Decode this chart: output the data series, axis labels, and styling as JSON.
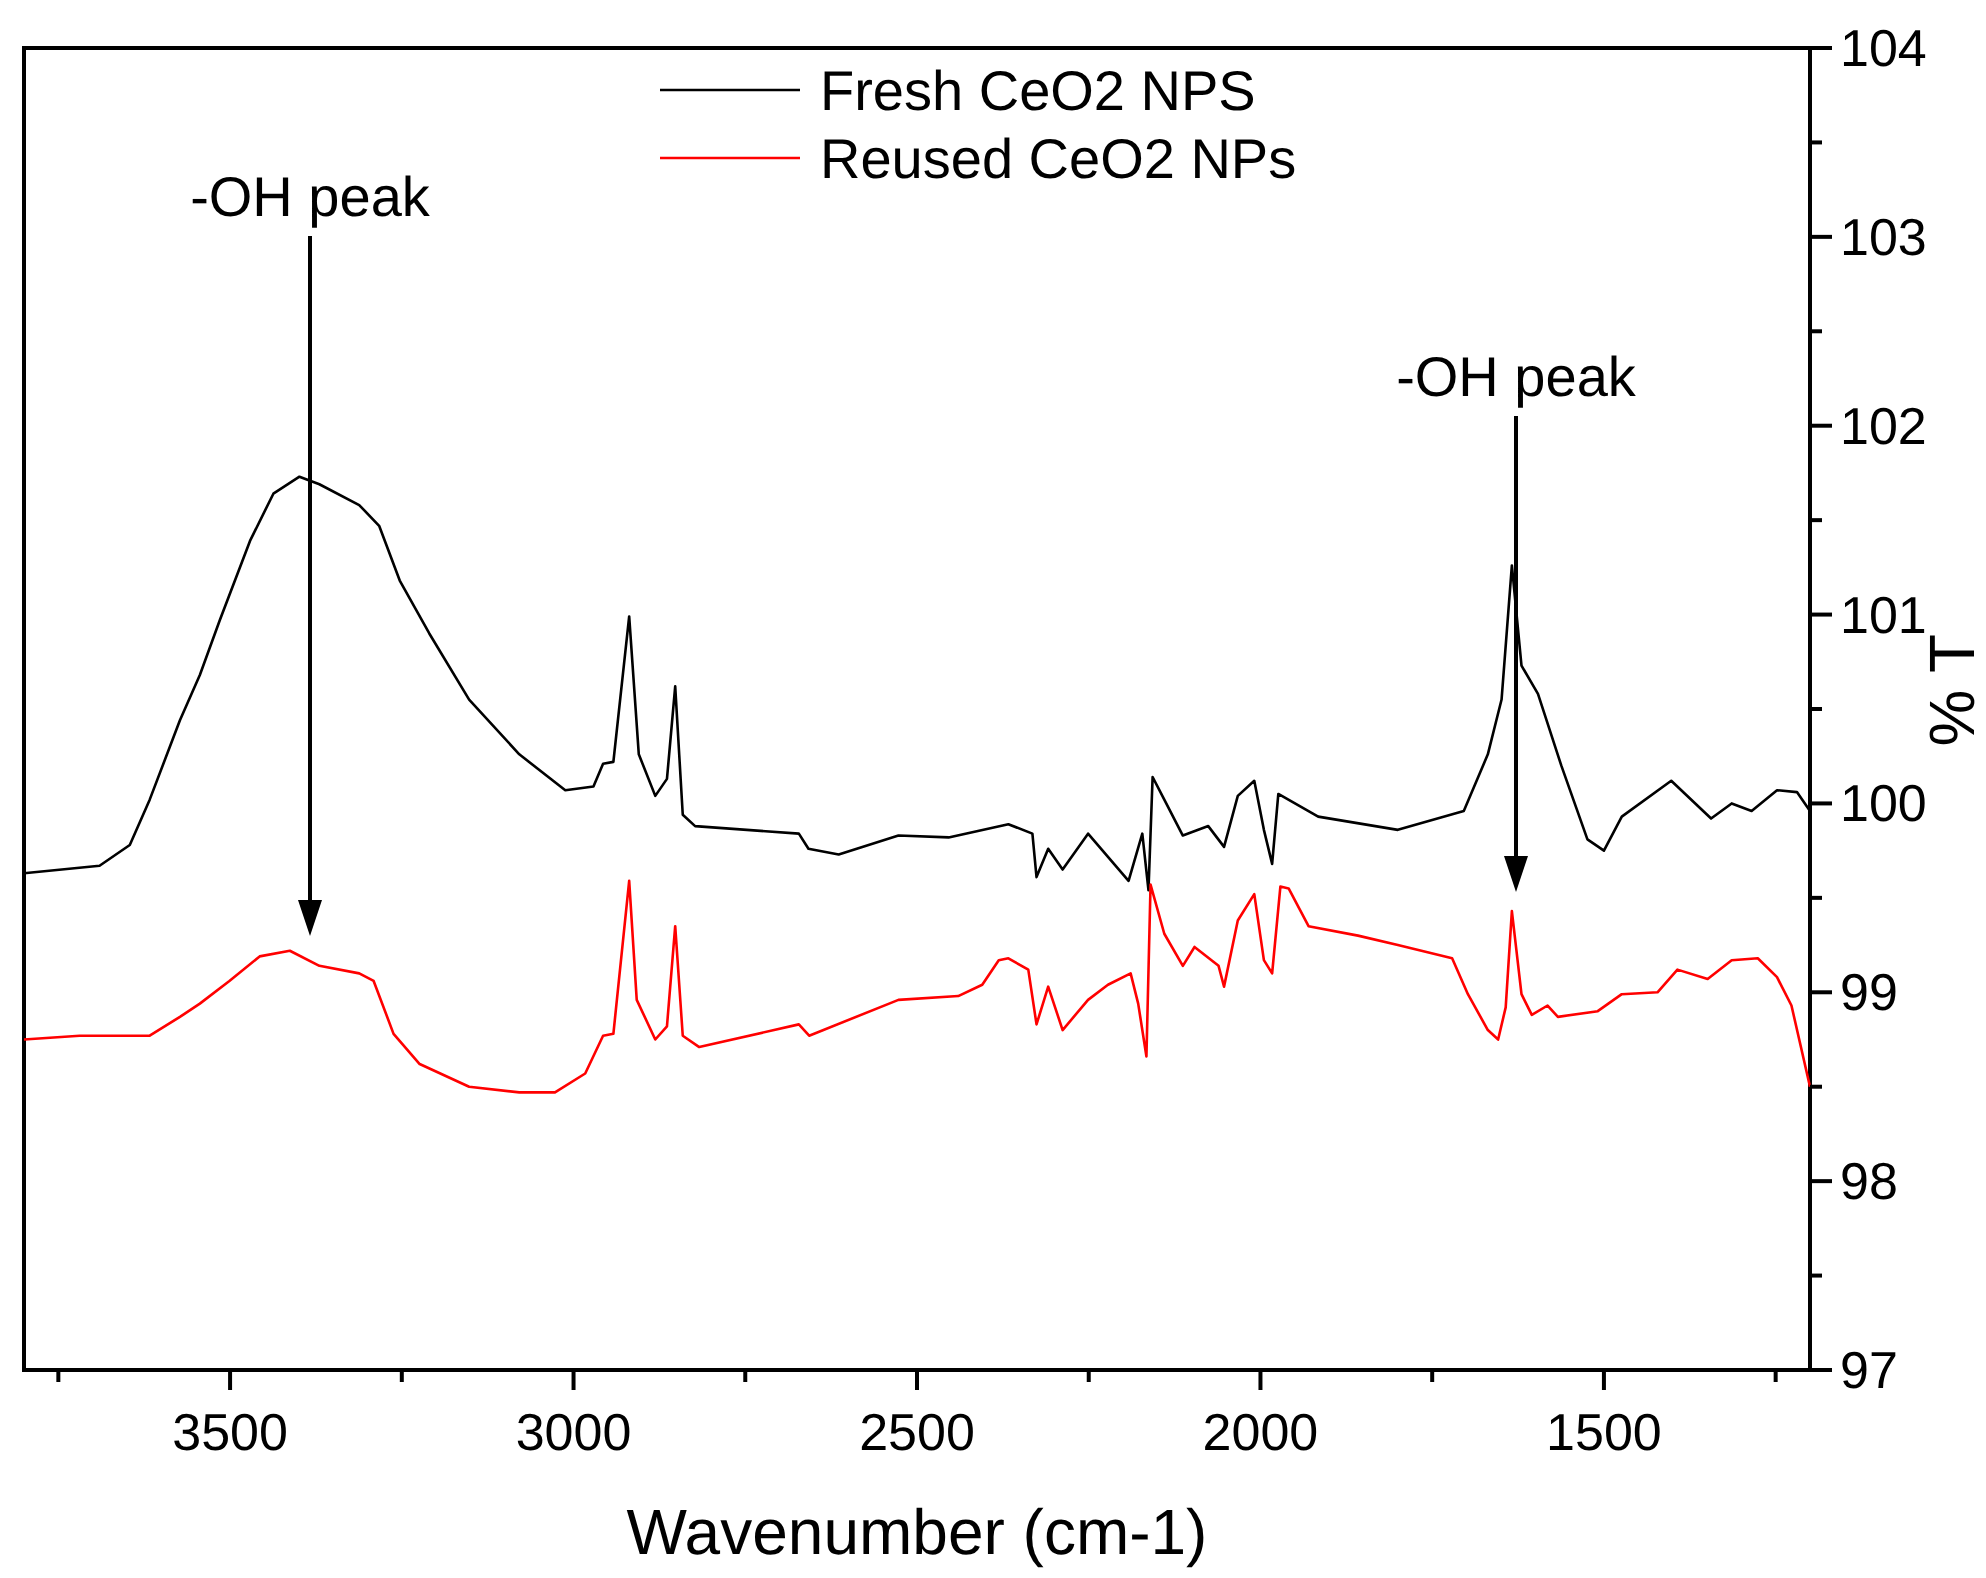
{
  "chart_data": {
    "type": "line",
    "xlabel": "Wavenumber (cm-1)",
    "ylabel": "% T",
    "legend": "top",
    "tick_labels": "xy",
    "xlim": [
      3800,
      1200
    ],
    "xticks": [
      {
        "value": 3750,
        "label": null
      },
      3500,
      {
        "value": 3250,
        "label": null
      },
      3000,
      {
        "value": 2750,
        "label": null
      },
      2500,
      {
        "value": 2250,
        "label": null
      },
      2000,
      {
        "value": 1750,
        "label": null
      },
      1500,
      {
        "value": 1250,
        "label": null
      }
    ],
    "ylim": [
      97,
      104
    ],
    "yticks": [
      97,
      {
        "value": 97.5,
        "label": null
      },
      98,
      {
        "value": 98.5,
        "label": null
      },
      99,
      {
        "value": 99.5,
        "label": null
      },
      100,
      {
        "value": 100.5,
        "label": null
      },
      101,
      {
        "value": 101.5,
        "label": null
      },
      102,
      {
        "value": 102.5,
        "label": null
      },
      103,
      {
        "value": 103.5,
        "label": null
      },
      104
    ],
    "annotations": [
      "-OH peak",
      "-OH peak"
    ],
    "series": [
      {
        "name": "Fresh CeO2 NPS",
        "color": "#000000",
        "x": [
          3800,
          3690,
          3646,
          3617,
          3573,
          3544,
          3515,
          3471,
          3437,
          3399,
          3370,
          3312,
          3283,
          3253,
          3210,
          3152,
          3079,
          3012,
          2971,
          2957,
          2942,
          2919,
          2905,
          2881,
          2864,
          2852,
          2841,
          2823,
          2672,
          2658,
          2614,
          2527,
          2454,
          2367,
          2332,
          2326,
          2309,
          2288,
          2251,
          2192,
          2172,
          2163,
          2157,
          2140,
          2113,
          2076,
          2053,
          2033,
          2009,
          1995,
          1983,
          1974,
          1916,
          1800,
          1704,
          1669,
          1649,
          1634,
          1620,
          1596,
          1562,
          1524,
          1500,
          1474,
          1402,
          1344,
          1314,
          1285,
          1248,
          1219,
          1200
        ],
        "values": [
          99.63,
          99.67,
          99.78,
          100.02,
          100.44,
          100.68,
          100.97,
          101.39,
          101.64,
          101.73,
          101.69,
          101.58,
          101.47,
          101.18,
          100.9,
          100.55,
          100.26,
          100.07,
          100.09,
          100.21,
          100.22,
          100.99,
          100.26,
          100.04,
          100.13,
          100.62,
          99.94,
          99.88,
          99.84,
          99.76,
          99.73,
          99.83,
          99.82,
          99.89,
          99.84,
          99.61,
          99.76,
          99.65,
          99.84,
          99.59,
          99.84,
          99.54,
          100.14,
          100.02,
          99.83,
          99.88,
          99.77,
          100.04,
          100.12,
          99.86,
          99.68,
          100.05,
          99.93,
          99.86,
          99.96,
          100.26,
          100.55,
          101.26,
          100.73,
          100.58,
          100.2,
          99.81,
          99.75,
          99.93,
          100.12,
          99.92,
          100,
          99.96,
          100.07,
          100.06,
          99.96
        ]
      },
      {
        "name": "Reused CeO2 NPs",
        "color": "#ff0000",
        "x": [
          3800,
          3719,
          3617,
          3573,
          3544,
          3501,
          3457,
          3413,
          3370,
          3312,
          3291,
          3262,
          3224,
          3152,
          3079,
          3027,
          2983,
          2957,
          2942,
          2919,
          2908,
          2881,
          2864,
          2852,
          2841,
          2817,
          2672,
          2657,
          2527,
          2440,
          2405,
          2381,
          2367,
          2338,
          2326,
          2309,
          2288,
          2251,
          2222,
          2189,
          2178,
          2166,
          2160,
          2140,
          2113,
          2096,
          2061,
          2053,
          2033,
          2009,
          1995,
          1983,
          1971,
          1959,
          1930,
          1858,
          1800,
          1721,
          1698,
          1669,
          1654,
          1643,
          1634,
          1620,
          1605,
          1582,
          1567,
          1509,
          1474,
          1422,
          1393,
          1349,
          1314,
          1276,
          1248,
          1227,
          1200
        ],
        "values": [
          98.75,
          98.77,
          98.77,
          98.87,
          98.94,
          99.06,
          99.19,
          99.22,
          99.14,
          99.1,
          99.06,
          98.78,
          98.62,
          98.5,
          98.47,
          98.47,
          98.57,
          98.77,
          98.78,
          99.59,
          98.96,
          98.75,
          98.82,
          99.35,
          98.77,
          98.71,
          98.83,
          98.77,
          98.96,
          98.98,
          99.04,
          99.17,
          99.18,
          99.12,
          98.83,
          99.03,
          98.8,
          98.96,
          99.04,
          99.1,
          98.94,
          98.66,
          99.57,
          99.31,
          99.14,
          99.24,
          99.14,
          99.03,
          99.38,
          99.52,
          99.17,
          99.1,
          99.56,
          99.55,
          99.35,
          99.3,
          99.25,
          99.18,
          98.99,
          98.8,
          98.75,
          98.92,
          99.43,
          98.99,
          98.88,
          98.93,
          98.87,
          98.9,
          98.99,
          99,
          99.12,
          99.07,
          99.17,
          99.18,
          99.08,
          98.93,
          98.5
        ]
      }
    ]
  }
}
